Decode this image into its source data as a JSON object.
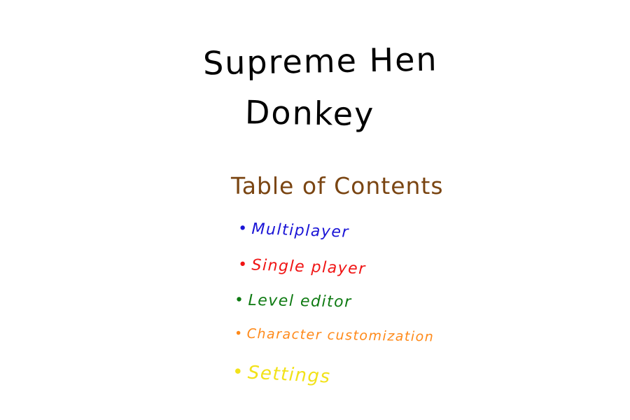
{
  "game": {
    "title_line1": "Supreme Hen",
    "title_line2": "Donkey"
  },
  "toc": {
    "heading": "Table of Contents",
    "heading_color": "#7a4512",
    "bullet": "•",
    "items": [
      {
        "label": "Multiplayer",
        "color": "#1a14d6"
      },
      {
        "label": "Single player",
        "color": "#f01414"
      },
      {
        "label": "Level editor",
        "color": "#0e7a12"
      },
      {
        "label": "Character customization",
        "color": "#ff8a1a"
      },
      {
        "label": "Settings",
        "color": "#f2e21a"
      }
    ]
  }
}
